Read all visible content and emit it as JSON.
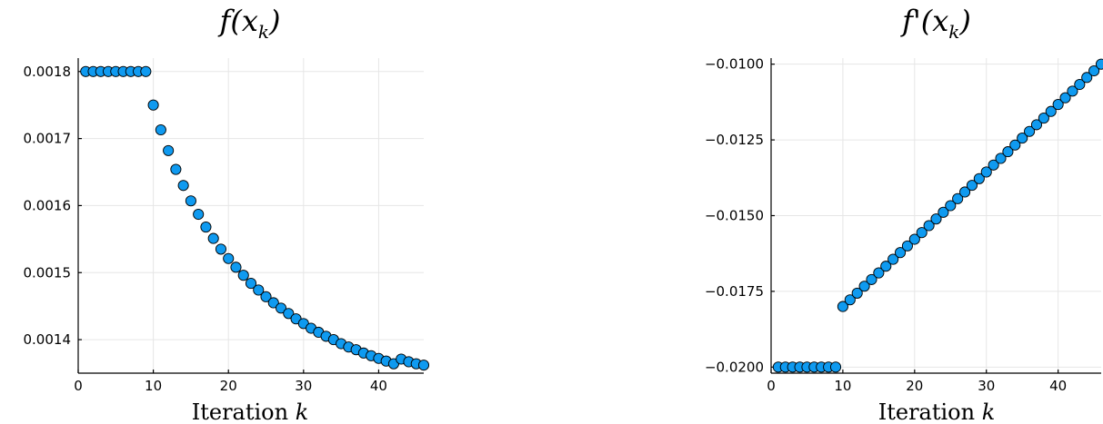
{
  "chart_data": [
    {
      "type": "scatter",
      "title": "f(x_k)",
      "title_parts": {
        "base": "f(x",
        "sub": "k",
        "close": ")"
      },
      "xlabel": "Iteration k",
      "xlabel_parts": {
        "word": "Iteration ",
        "var": "k"
      },
      "xlim": [
        0,
        46
      ],
      "ylim": [
        0.00135,
        0.00182
      ],
      "xticks": [
        0,
        10,
        20,
        30,
        40
      ],
      "yticks": [
        0.0014,
        0.0015,
        0.0016,
        0.0017,
        0.0018
      ],
      "ytick_labels": [
        "0.0014",
        "0.0015",
        "0.0016",
        "0.0017",
        "0.0018"
      ],
      "grid": true,
      "marker_color": "#0f9af0",
      "x": [
        1,
        2,
        3,
        4,
        5,
        6,
        7,
        8,
        9,
        10,
        11,
        12,
        13,
        14,
        15,
        16,
        17,
        18,
        19,
        20,
        21,
        22,
        23,
        24,
        25,
        26,
        27,
        28,
        29,
        30,
        31,
        32,
        33,
        34,
        35,
        36,
        37,
        38,
        39,
        40,
        41,
        42,
        43,
        44,
        45,
        46
      ],
      "y": [
        0.0018,
        0.0018,
        0.0018,
        0.0018,
        0.0018,
        0.0018,
        0.0018,
        0.0018,
        0.0018,
        0.00175,
        0.001713,
        0.001682,
        0.001654,
        0.00163,
        0.001607,
        0.001587,
        0.001568,
        0.001551,
        0.001535,
        0.001521,
        0.001508,
        0.001496,
        0.001484,
        0.001474,
        0.001464,
        0.001455,
        0.001447,
        0.001439,
        0.001431,
        0.001424,
        0.001417,
        0.001411,
        0.001405,
        0.0014,
        0.001394,
        0.001389,
        0.001385,
        0.00138,
        0.001376,
        0.001372,
        0.001368,
        0.001364,
        0.001371,
        0.001367,
        0.001364,
        0.001362
      ]
    },
    {
      "type": "scatter",
      "title": "f'(x_k)",
      "title_parts": {
        "base": "f'(x",
        "sub": "k",
        "close": ")"
      },
      "xlabel": "Iteration k",
      "xlabel_parts": {
        "word": "Iteration ",
        "var": "k"
      },
      "xlim": [
        0,
        46
      ],
      "ylim": [
        -0.0202,
        -0.0098
      ],
      "xticks": [
        0,
        10,
        20,
        30,
        40
      ],
      "yticks": [
        -0.02,
        -0.0175,
        -0.015,
        -0.0125,
        -0.01
      ],
      "ytick_labels": [
        "−0.0200",
        "−0.0175",
        "−0.0150",
        "−0.0125",
        "−0.0100"
      ],
      "grid": true,
      "marker_color": "#0f9af0",
      "x": [
        1,
        2,
        3,
        4,
        5,
        6,
        7,
        8,
        9,
        10,
        11,
        12,
        13,
        14,
        15,
        16,
        17,
        18,
        19,
        20,
        21,
        22,
        23,
        24,
        25,
        26,
        27,
        28,
        29,
        30,
        31,
        32,
        33,
        34,
        35,
        36,
        37,
        38,
        39,
        40,
        41,
        42,
        43,
        44,
        45,
        46
      ],
      "y": [
        -0.02,
        -0.02,
        -0.02,
        -0.02,
        -0.02,
        -0.02,
        -0.02,
        -0.02,
        -0.02,
        -0.018,
        -0.01778,
        -0.01756,
        -0.01733,
        -0.01711,
        -0.01689,
        -0.01667,
        -0.01644,
        -0.01622,
        -0.016,
        -0.01578,
        -0.01556,
        -0.01533,
        -0.01511,
        -0.01489,
        -0.01467,
        -0.01444,
        -0.01422,
        -0.014,
        -0.01378,
        -0.01356,
        -0.01333,
        -0.01311,
        -0.01289,
        -0.01267,
        -0.01244,
        -0.01222,
        -0.012,
        -0.01178,
        -0.01156,
        -0.01133,
        -0.01111,
        -0.01089,
        -0.01067,
        -0.01044,
        -0.01022,
        -0.01
      ]
    }
  ]
}
